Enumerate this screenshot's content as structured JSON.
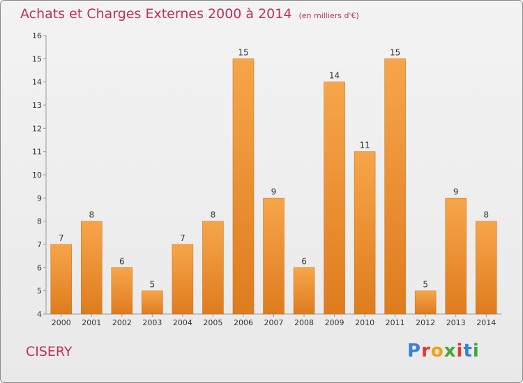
{
  "header": {
    "title": "Achats et Charges Externes 2000 à 2014",
    "subtitle": "(en milliers d'€)"
  },
  "footer": {
    "commune": "CISERY",
    "logo": [
      "P",
      "r",
      "o",
      "x",
      "i",
      "t",
      "i"
    ]
  },
  "colors": {
    "title": "#c0305a",
    "bar_light": "#f7a54a",
    "bar_dark": "#de7c1e",
    "logo": [
      "#3a7fd5",
      "#e23b2a",
      "#f2a011",
      "#40a838",
      "#e23b2a",
      "#3a7fd5",
      "#40a838"
    ]
  },
  "chart_data": {
    "type": "bar",
    "categories": [
      "2000",
      "2001",
      "2002",
      "2003",
      "2004",
      "2005",
      "2006",
      "2007",
      "2008",
      "2009",
      "2010",
      "2011",
      "2012",
      "2013",
      "2014"
    ],
    "values": [
      7,
      8,
      6,
      5,
      7,
      8,
      15,
      9,
      6,
      14,
      11,
      15,
      5,
      9,
      8
    ],
    "ylim": [
      4,
      16
    ],
    "yticks": [
      4,
      5,
      6,
      7,
      8,
      9,
      10,
      11,
      12,
      13,
      14,
      15,
      16
    ],
    "grid": false,
    "legend": "none"
  }
}
